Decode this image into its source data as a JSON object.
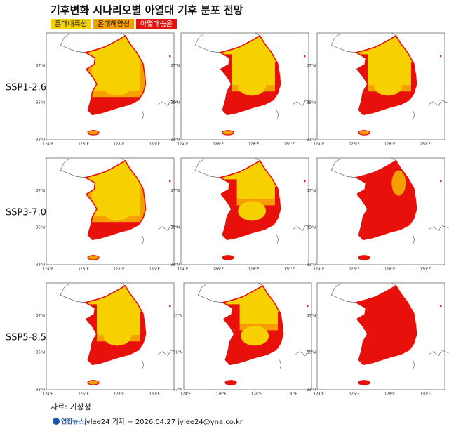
{
  "header": {
    "title": "기후변화 시나리오별 아열대 기후 분포 전망"
  },
  "legend": [
    {
      "label": "온대내륙성",
      "color": "#f7d000"
    },
    {
      "label": "온대해양성",
      "color": "#f5a000"
    },
    {
      "label": "아열대습윤",
      "color": "#e8100a"
    }
  ],
  "rows": [
    {
      "label": "SSP1-2.6"
    },
    {
      "label": "SSP3-7.0"
    },
    {
      "label": "SSP5-8.5"
    }
  ],
  "lat_labels": [
    "37°N",
    "35°N",
    "33°N"
  ],
  "lon_labels": [
    "124°E",
    "126°E",
    "128°E",
    "130°E"
  ],
  "source": "자료: 기상청",
  "footer": {
    "logo": "연합뉴스",
    "credit": "jylee24 기자 = 2026.04.27 jylee24@yna.co.kr"
  }
}
